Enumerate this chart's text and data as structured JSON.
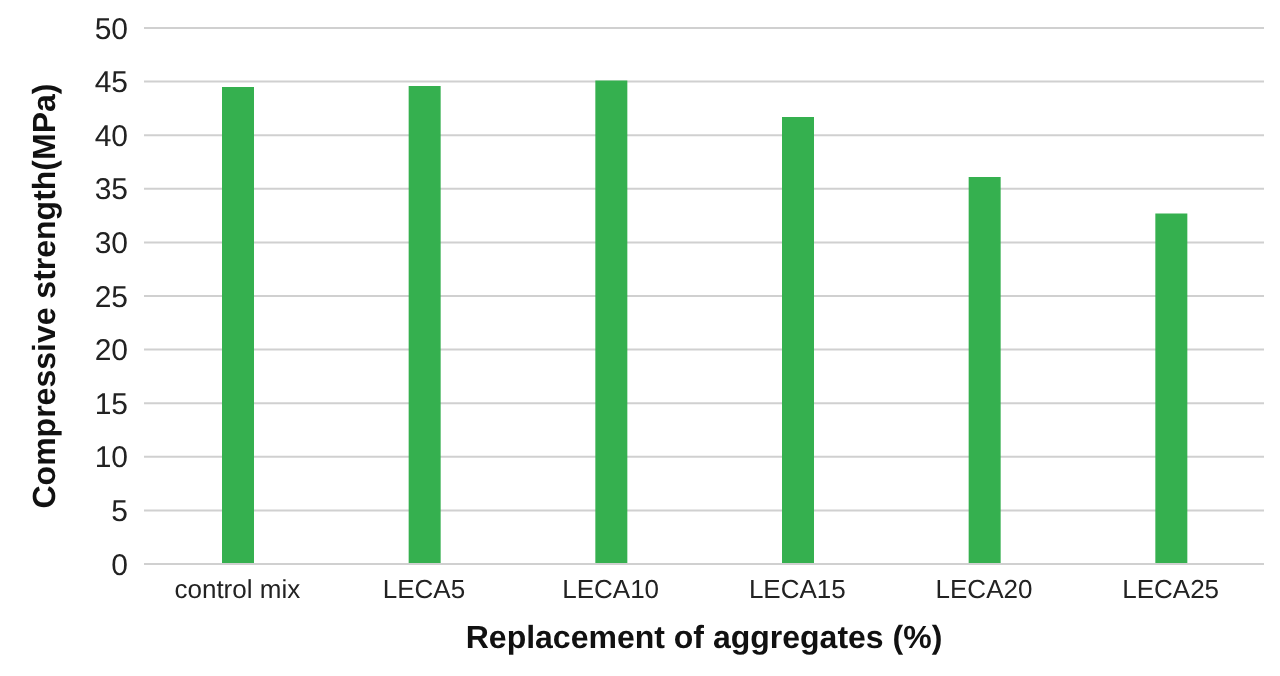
{
  "chart_data": {
    "type": "bar",
    "xlabel": "Replacement of aggregates (%)",
    "ylabel": "Compressive strength(MPa)",
    "categories": [
      "control mix",
      "LECA5",
      "LECA10",
      "LECA15",
      "LECA20",
      "LECA25"
    ],
    "values": [
      44.5,
      44.6,
      45.1,
      41.7,
      36.1,
      32.7
    ],
    "color": "#35b04f",
    "ylim": [
      0,
      50
    ],
    "yticks": [
      0,
      5,
      10,
      15,
      20,
      25,
      30,
      35,
      40,
      45,
      50
    ],
    "grid": "y"
  }
}
